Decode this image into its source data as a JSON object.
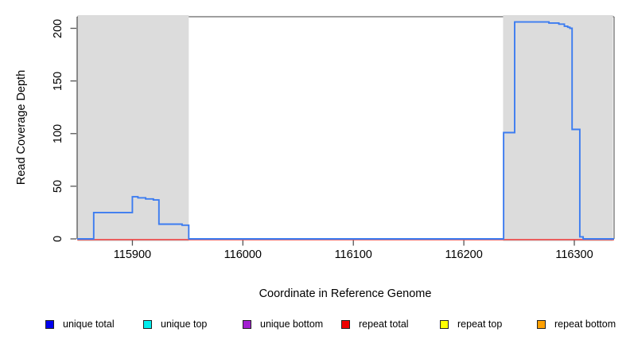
{
  "chart_data": {
    "type": "line",
    "subtype": "step",
    "title": "",
    "xlabel": "Coordinate in Reference Genome",
    "ylabel": "Read Coverage Depth",
    "xlim": [
      115850,
      116336
    ],
    "ylim": [
      0,
      211
    ],
    "x_ticks": [
      "115900",
      "116000",
      "116100",
      "116200",
      "116300"
    ],
    "x_tick_values": [
      115900,
      116000,
      116100,
      116200,
      116300
    ],
    "y_ticks": [
      "0",
      "50",
      "100",
      "150",
      "200"
    ],
    "y_tick_values": [
      0,
      50,
      100,
      150,
      200
    ],
    "grid": false,
    "legend_position": "bottom",
    "colors": {
      "shaded_region": "#dcdcdc",
      "frame": "#666666",
      "tick": "#555555",
      "unique_total_line": "#3c7cf0",
      "repeat_total_line": "#ee4444"
    },
    "shaded_regions": [
      {
        "name": "left-shaded-region",
        "x_start": 115850,
        "x_end": 115951
      },
      {
        "name": "right-shaded-region",
        "x_start": 116235,
        "x_end": 116335
      }
    ],
    "series": [
      {
        "name": "unique total",
        "color": "#3c7cf0",
        "step_points": [
          [
            115850,
            0
          ],
          [
            115865,
            0
          ],
          [
            115865,
            25
          ],
          [
            115900,
            25
          ],
          [
            115900,
            40
          ],
          [
            115905,
            40
          ],
          [
            115905,
            39
          ],
          [
            115912,
            39
          ],
          [
            115912,
            38
          ],
          [
            115919,
            38
          ],
          [
            115919,
            37
          ],
          [
            115924,
            37
          ],
          [
            115924,
            14
          ],
          [
            115945,
            14
          ],
          [
            115945,
            13
          ],
          [
            115951,
            13
          ],
          [
            115951,
            0
          ],
          [
            116236,
            0
          ],
          [
            116236,
            101
          ],
          [
            116246,
            101
          ],
          [
            116246,
            206
          ],
          [
            116277,
            206
          ],
          [
            116277,
            205
          ],
          [
            116286,
            205
          ],
          [
            116286,
            204
          ],
          [
            116291,
            204
          ],
          [
            116291,
            202
          ],
          [
            116294,
            202
          ],
          [
            116294,
            201
          ],
          [
            116296,
            201
          ],
          [
            116296,
            200
          ],
          [
            116298,
            200
          ],
          [
            116298,
            104
          ],
          [
            116305,
            104
          ],
          [
            116305,
            2
          ],
          [
            116308,
            2
          ],
          [
            116308,
            0
          ],
          [
            116336,
            0
          ]
        ]
      },
      {
        "name": "repeat total",
        "color": "#ee4444",
        "step_points": [
          [
            115850,
            0
          ],
          [
            116336,
            0
          ]
        ]
      }
    ],
    "legend": [
      {
        "label": "unique total",
        "color": "#0000ee"
      },
      {
        "label": "unique top",
        "color": "#00eeee"
      },
      {
        "label": "unique bottom",
        "color": "#a21fd0"
      },
      {
        "label": "repeat total",
        "color": "#ee0000"
      },
      {
        "label": "repeat top",
        "color": "#ffff00"
      },
      {
        "label": "repeat bottom",
        "color": "#ffa000"
      }
    ]
  }
}
